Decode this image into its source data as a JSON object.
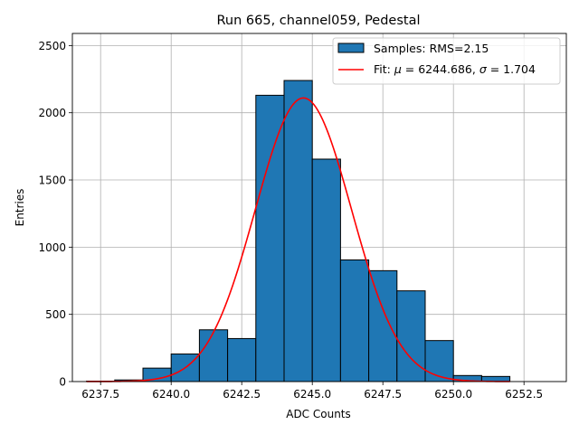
{
  "chart_data": {
    "type": "bar",
    "title": "Run 665, channel059, Pedestal",
    "xlabel": "ADC Counts",
    "ylabel": "Entries",
    "xlim": [
      6236.5,
      6254.0
    ],
    "ylim": [
      0,
      2590
    ],
    "x_ticks": [
      6237.5,
      6240.0,
      6242.5,
      6245.0,
      6247.5,
      6250.0,
      6252.5
    ],
    "x_tick_labels": [
      "6237.5",
      "6240.0",
      "6242.5",
      "6245.0",
      "6247.5",
      "6250.0",
      "6252.5"
    ],
    "y_ticks": [
      0,
      500,
      1000,
      1500,
      2000,
      2500
    ],
    "y_tick_labels": [
      "0",
      "500",
      "1000",
      "1500",
      "2000",
      "2500"
    ],
    "grid": true,
    "legend_position": "top-right",
    "histogram": {
      "name": "Samples: RMS=2.15",
      "color": "#1f77b4",
      "edge_color": "#000000",
      "bin_edges": [
        6237,
        6238,
        6239,
        6240,
        6241,
        6242,
        6243,
        6244,
        6245,
        6246,
        6247,
        6248,
        6249,
        6250,
        6251,
        6252
      ],
      "counts": [
        3,
        12,
        100,
        205,
        385,
        320,
        2130,
        2240,
        1655,
        905,
        825,
        675,
        305,
        45,
        38
      ]
    },
    "fit": {
      "name_prefix": "Fit: ",
      "mu_symbol": "μ",
      "mu_value": " = 6244.686, ",
      "sigma_symbol": "σ",
      "sigma_value": " = 1.704",
      "mu": 6244.686,
      "sigma": 1.704,
      "amplitude": 2110,
      "x_range": [
        6237,
        6252
      ],
      "color": "#ff0000"
    }
  }
}
